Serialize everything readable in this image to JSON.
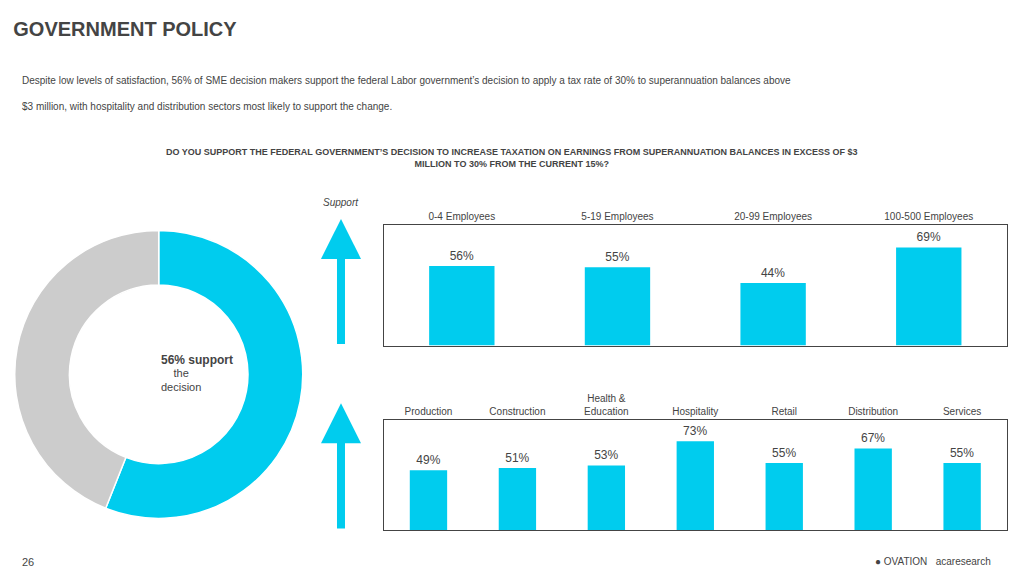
{
  "chart_data": [
    {
      "type": "pie",
      "title": "GOVERNMENT POLICY",
      "subtitle": "Despite low levels of satisfaction, 56% of SME decision makers support the federal Labor government’s decision to apply a tax rate of 30% to superannuation balances above\n$3 million, with hospitality and distribution sectors most likely to support the change.",
      "categories": [
        null,
        null
      ],
      "values": [
        56,
        44
      ],
      "colors": [
        "#00CCEE",
        "#CCCCCC"
      ],
      "annotations": [
        "56% support",
        "the\ndecision",
        "DO YOU SUPPORT THE FEDERAL GOVERNMENT’S DECISION TO INCREASE TAXATION ON EARNINGS FROM SUPERANNUATION BALANCES IN EXCESS OF $3\nMILLION TO 30% FROM THE CURRENT 15%?",
        "26",
        "● OVATION   acaresearch"
      ]
    },
    {
      "type": "bar",
      "categories": [
        "0-4 Employees",
        "5-19 Employees",
        "20-99 Employees",
        "100-500 Employees"
      ],
      "values": [
        56,
        55,
        44,
        69
      ],
      "value_labels": [
        "56%",
        "55%",
        "44%",
        "69%"
      ],
      "data_labels": true,
      "color": "#00CCEE",
      "ylim": [
        0,
        85
      ],
      "yticks": [],
      "tick_labels": "x",
      "grid": false,
      "annotations": [
        "Support"
      ]
    },
    {
      "type": "bar",
      "categories": [
        "Production",
        "Construction",
        "Health &\nEducation",
        "Hospitality",
        "Retail",
        "Distribution",
        "Services"
      ],
      "values": [
        49,
        51,
        53,
        73,
        55,
        67,
        55
      ],
      "value_labels": [
        "49%",
        "51%",
        "53%",
        "73%",
        "55%",
        "67%",
        "55%"
      ],
      "data_labels": true,
      "color": "#00CCEE",
      "ylim": [
        0,
        90
      ],
      "yticks": [],
      "tick_labels": "x",
      "grid": false
    }
  ]
}
